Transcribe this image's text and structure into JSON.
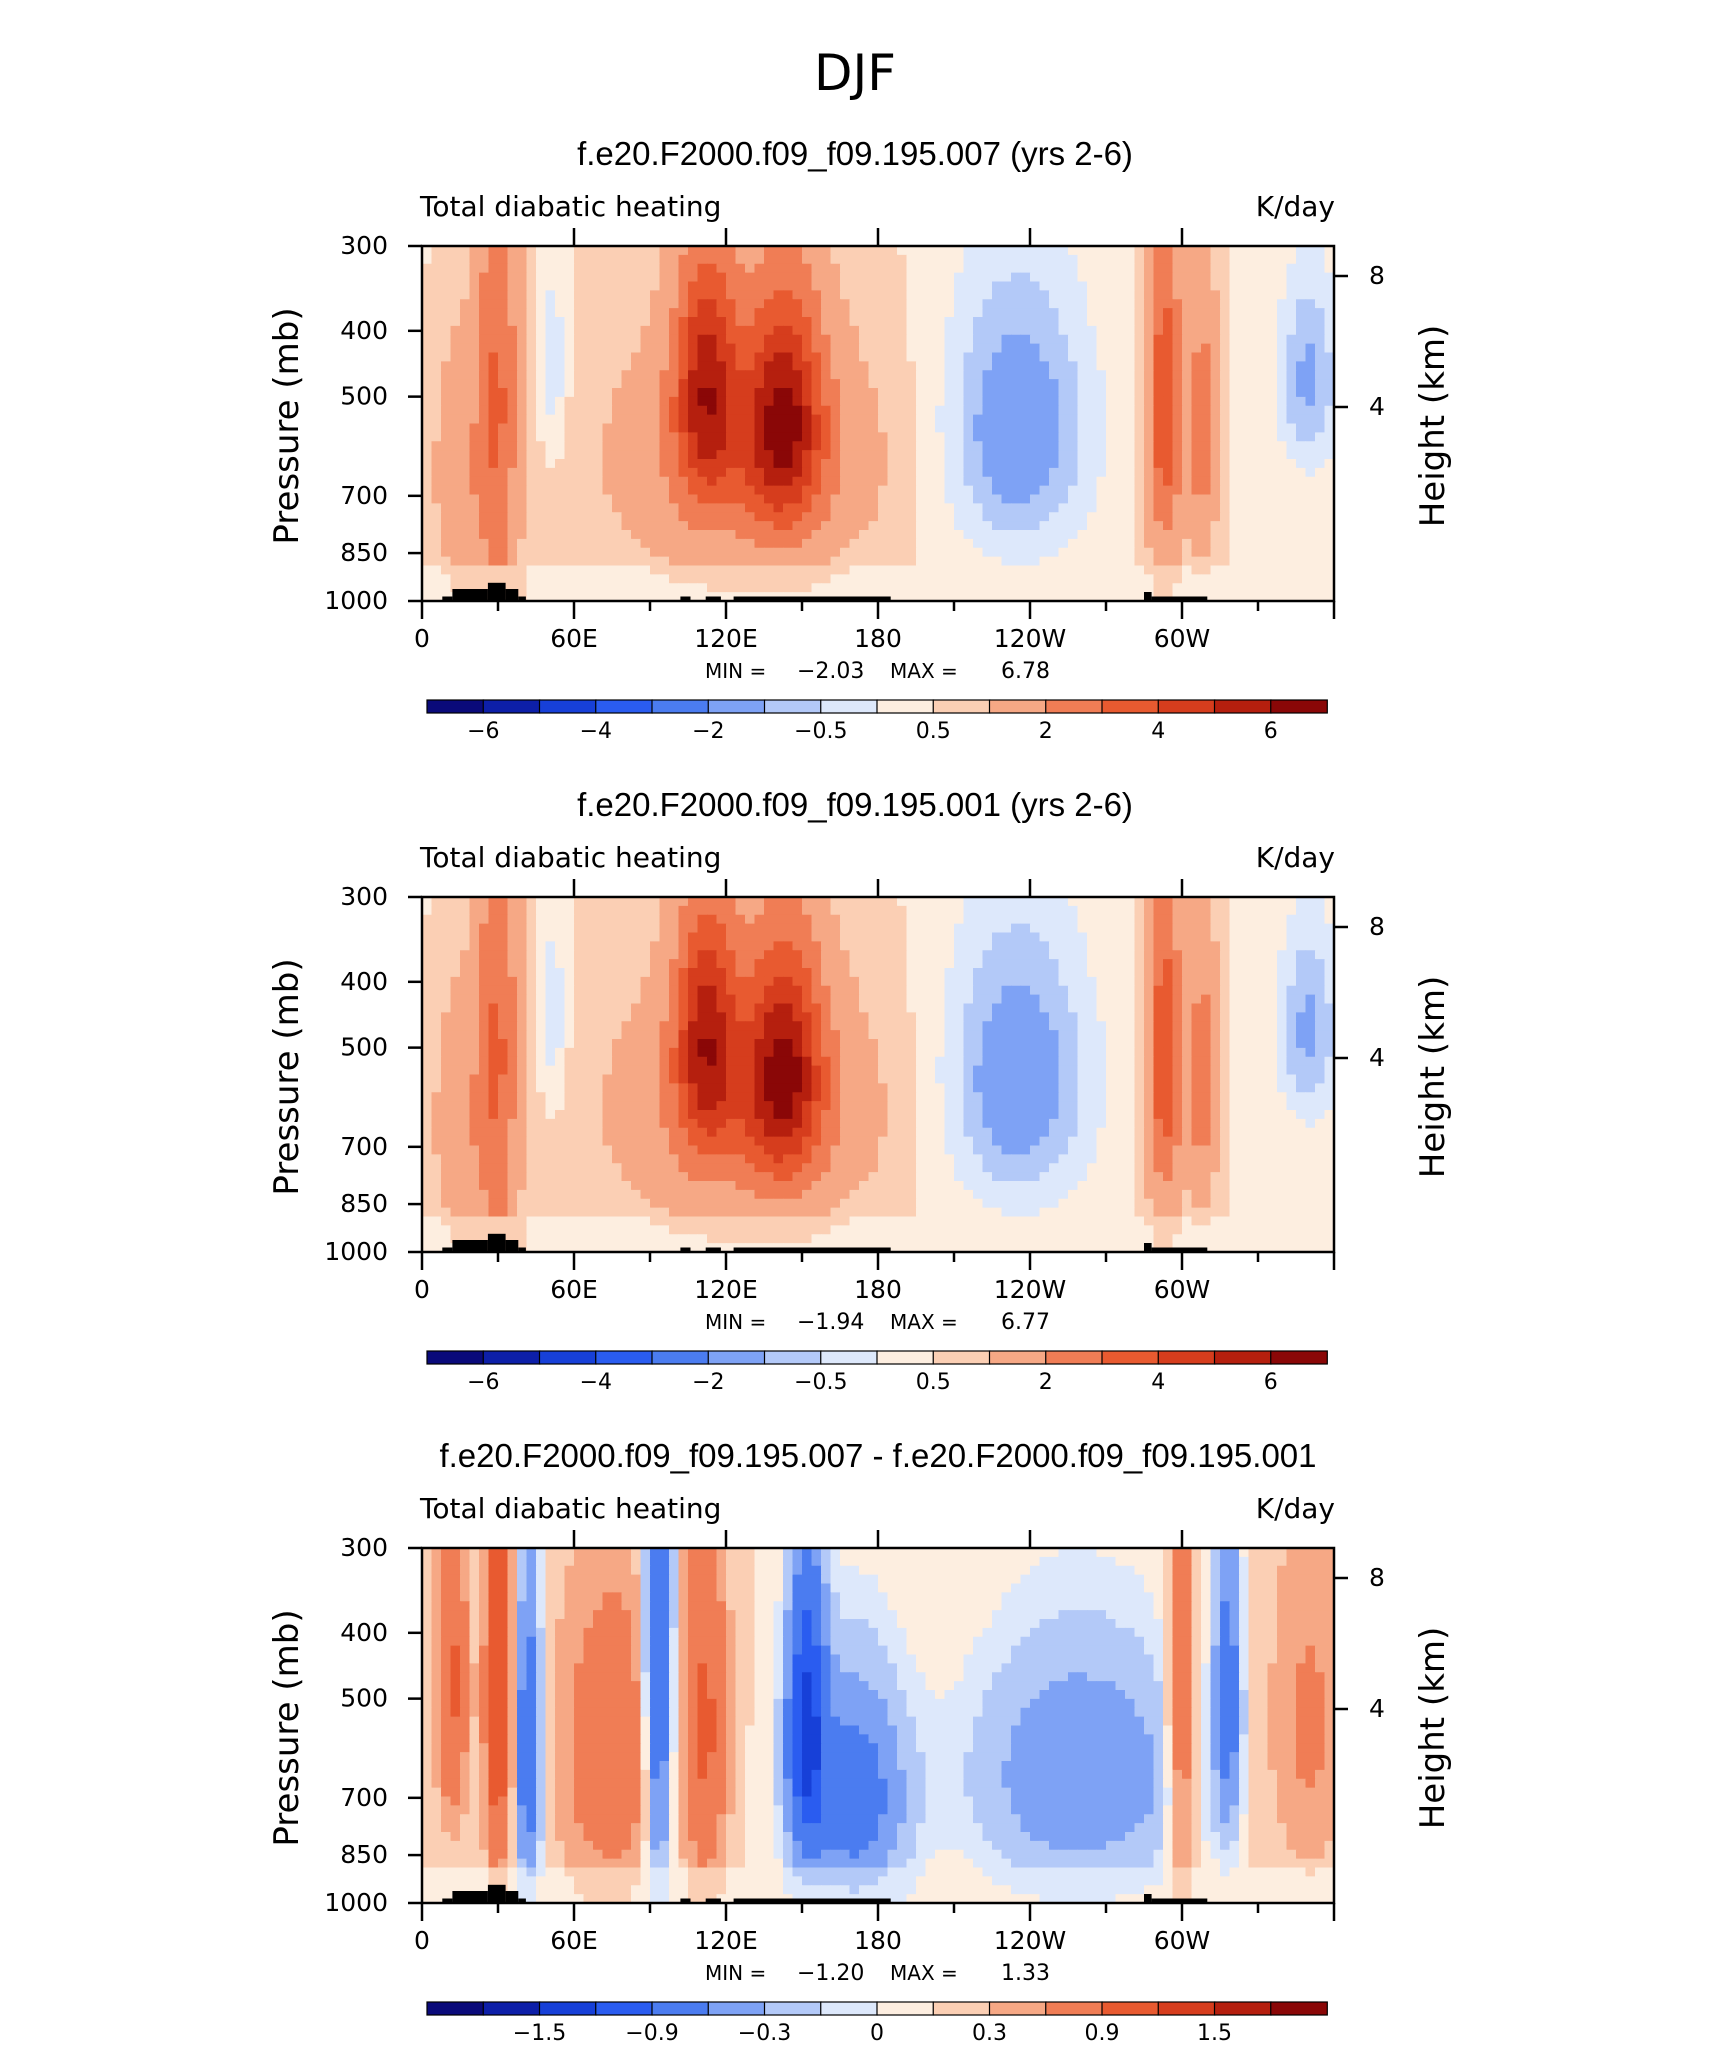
{
  "figure": {
    "title": "DJF"
  },
  "chart_data": [
    {
      "type": "heatmap",
      "title": "f.e20.F2000.f09_f09.195.007 (yrs 2-6)",
      "subtitle_left": "Total diabatic heating",
      "subtitle_right": "K/day",
      "xlabel": "",
      "ylabel": "Pressure (mb)",
      "y2label": "Height (km)",
      "x_ticks": [
        "0",
        "60E",
        "120E",
        "180",
        "120W",
        "60W"
      ],
      "y_ticks": [
        "300",
        "400",
        "500",
        "700",
        "850",
        "1000"
      ],
      "y2_ticks": [
        "8",
        "4"
      ],
      "ylim": [
        1000,
        300
      ],
      "stats": {
        "min_label": "MIN =",
        "min": "−2.03",
        "max_label": "MAX =",
        "max": "6.78"
      },
      "colorbar": {
        "labels": [
          "−6",
          "−4",
          "−2",
          "−0.5",
          "0.5",
          "2",
          "4",
          "6"
        ],
        "colors": [
          "#0a0a7a",
          "#0d1fa8",
          "#1740d8",
          "#2a5cf0",
          "#4b7cf0",
          "#7ea2f5",
          "#b3c9f8",
          "#dde8fb",
          "#fdeee0",
          "#fbcfb4",
          "#f6a885",
          "#f07d55",
          "#e85a30",
          "#d63d1d",
          "#b51f0e",
          "#8a0707"
        ]
      },
      "value_range": [
        -2.03,
        6.78
      ]
    },
    {
      "type": "heatmap",
      "title": "f.e20.F2000.f09_f09.195.001 (yrs 2-6)",
      "subtitle_left": "Total diabatic heating",
      "subtitle_right": "K/day",
      "xlabel": "",
      "ylabel": "Pressure (mb)",
      "y2label": "Height (km)",
      "x_ticks": [
        "0",
        "60E",
        "120E",
        "180",
        "120W",
        "60W"
      ],
      "y_ticks": [
        "300",
        "400",
        "500",
        "700",
        "850",
        "1000"
      ],
      "y2_ticks": [
        "8",
        "4"
      ],
      "ylim": [
        1000,
        300
      ],
      "stats": {
        "min_label": "MIN =",
        "min": "−1.94",
        "max_label": "MAX =",
        "max": "6.77"
      },
      "colorbar": {
        "labels": [
          "−6",
          "−4",
          "−2",
          "−0.5",
          "0.5",
          "2",
          "4",
          "6"
        ],
        "colors": [
          "#0a0a7a",
          "#0d1fa8",
          "#1740d8",
          "#2a5cf0",
          "#4b7cf0",
          "#7ea2f5",
          "#b3c9f8",
          "#dde8fb",
          "#fdeee0",
          "#fbcfb4",
          "#f6a885",
          "#f07d55",
          "#e85a30",
          "#d63d1d",
          "#b51f0e",
          "#8a0707"
        ]
      },
      "value_range": [
        -1.94,
        6.77
      ]
    },
    {
      "type": "heatmap",
      "title": "f.e20.F2000.f09_f09.195.007 - f.e20.F2000.f09_f09.195.001",
      "subtitle_left": "Total diabatic heating",
      "subtitle_right": "K/day",
      "xlabel": "",
      "ylabel": "Pressure (mb)",
      "y2label": "Height (km)",
      "x_ticks": [
        "0",
        "60E",
        "120E",
        "180",
        "120W",
        "60W"
      ],
      "y_ticks": [
        "300",
        "400",
        "500",
        "700",
        "850",
        "1000"
      ],
      "y2_ticks": [
        "8",
        "4"
      ],
      "ylim": [
        1000,
        300
      ],
      "stats": {
        "min_label": "MIN =",
        "min": "−1.20",
        "max_label": "MAX =",
        "max": "1.33"
      },
      "colorbar": {
        "labels": [
          "−1.5",
          "−0.9",
          "−0.3",
          "0",
          "0.3",
          "0.9",
          "1.5"
        ],
        "colors": [
          "#0a0a7a",
          "#0d1fa8",
          "#1740d8",
          "#2a5cf0",
          "#4b7cf0",
          "#7ea2f5",
          "#b3c9f8",
          "#dde8fb",
          "#fdeee0",
          "#fbcfb4",
          "#f6a885",
          "#f07d55",
          "#e85a30",
          "#d63d1d",
          "#b51f0e",
          "#8a0707"
        ]
      },
      "value_range": [
        -1.2,
        1.33
      ]
    }
  ]
}
